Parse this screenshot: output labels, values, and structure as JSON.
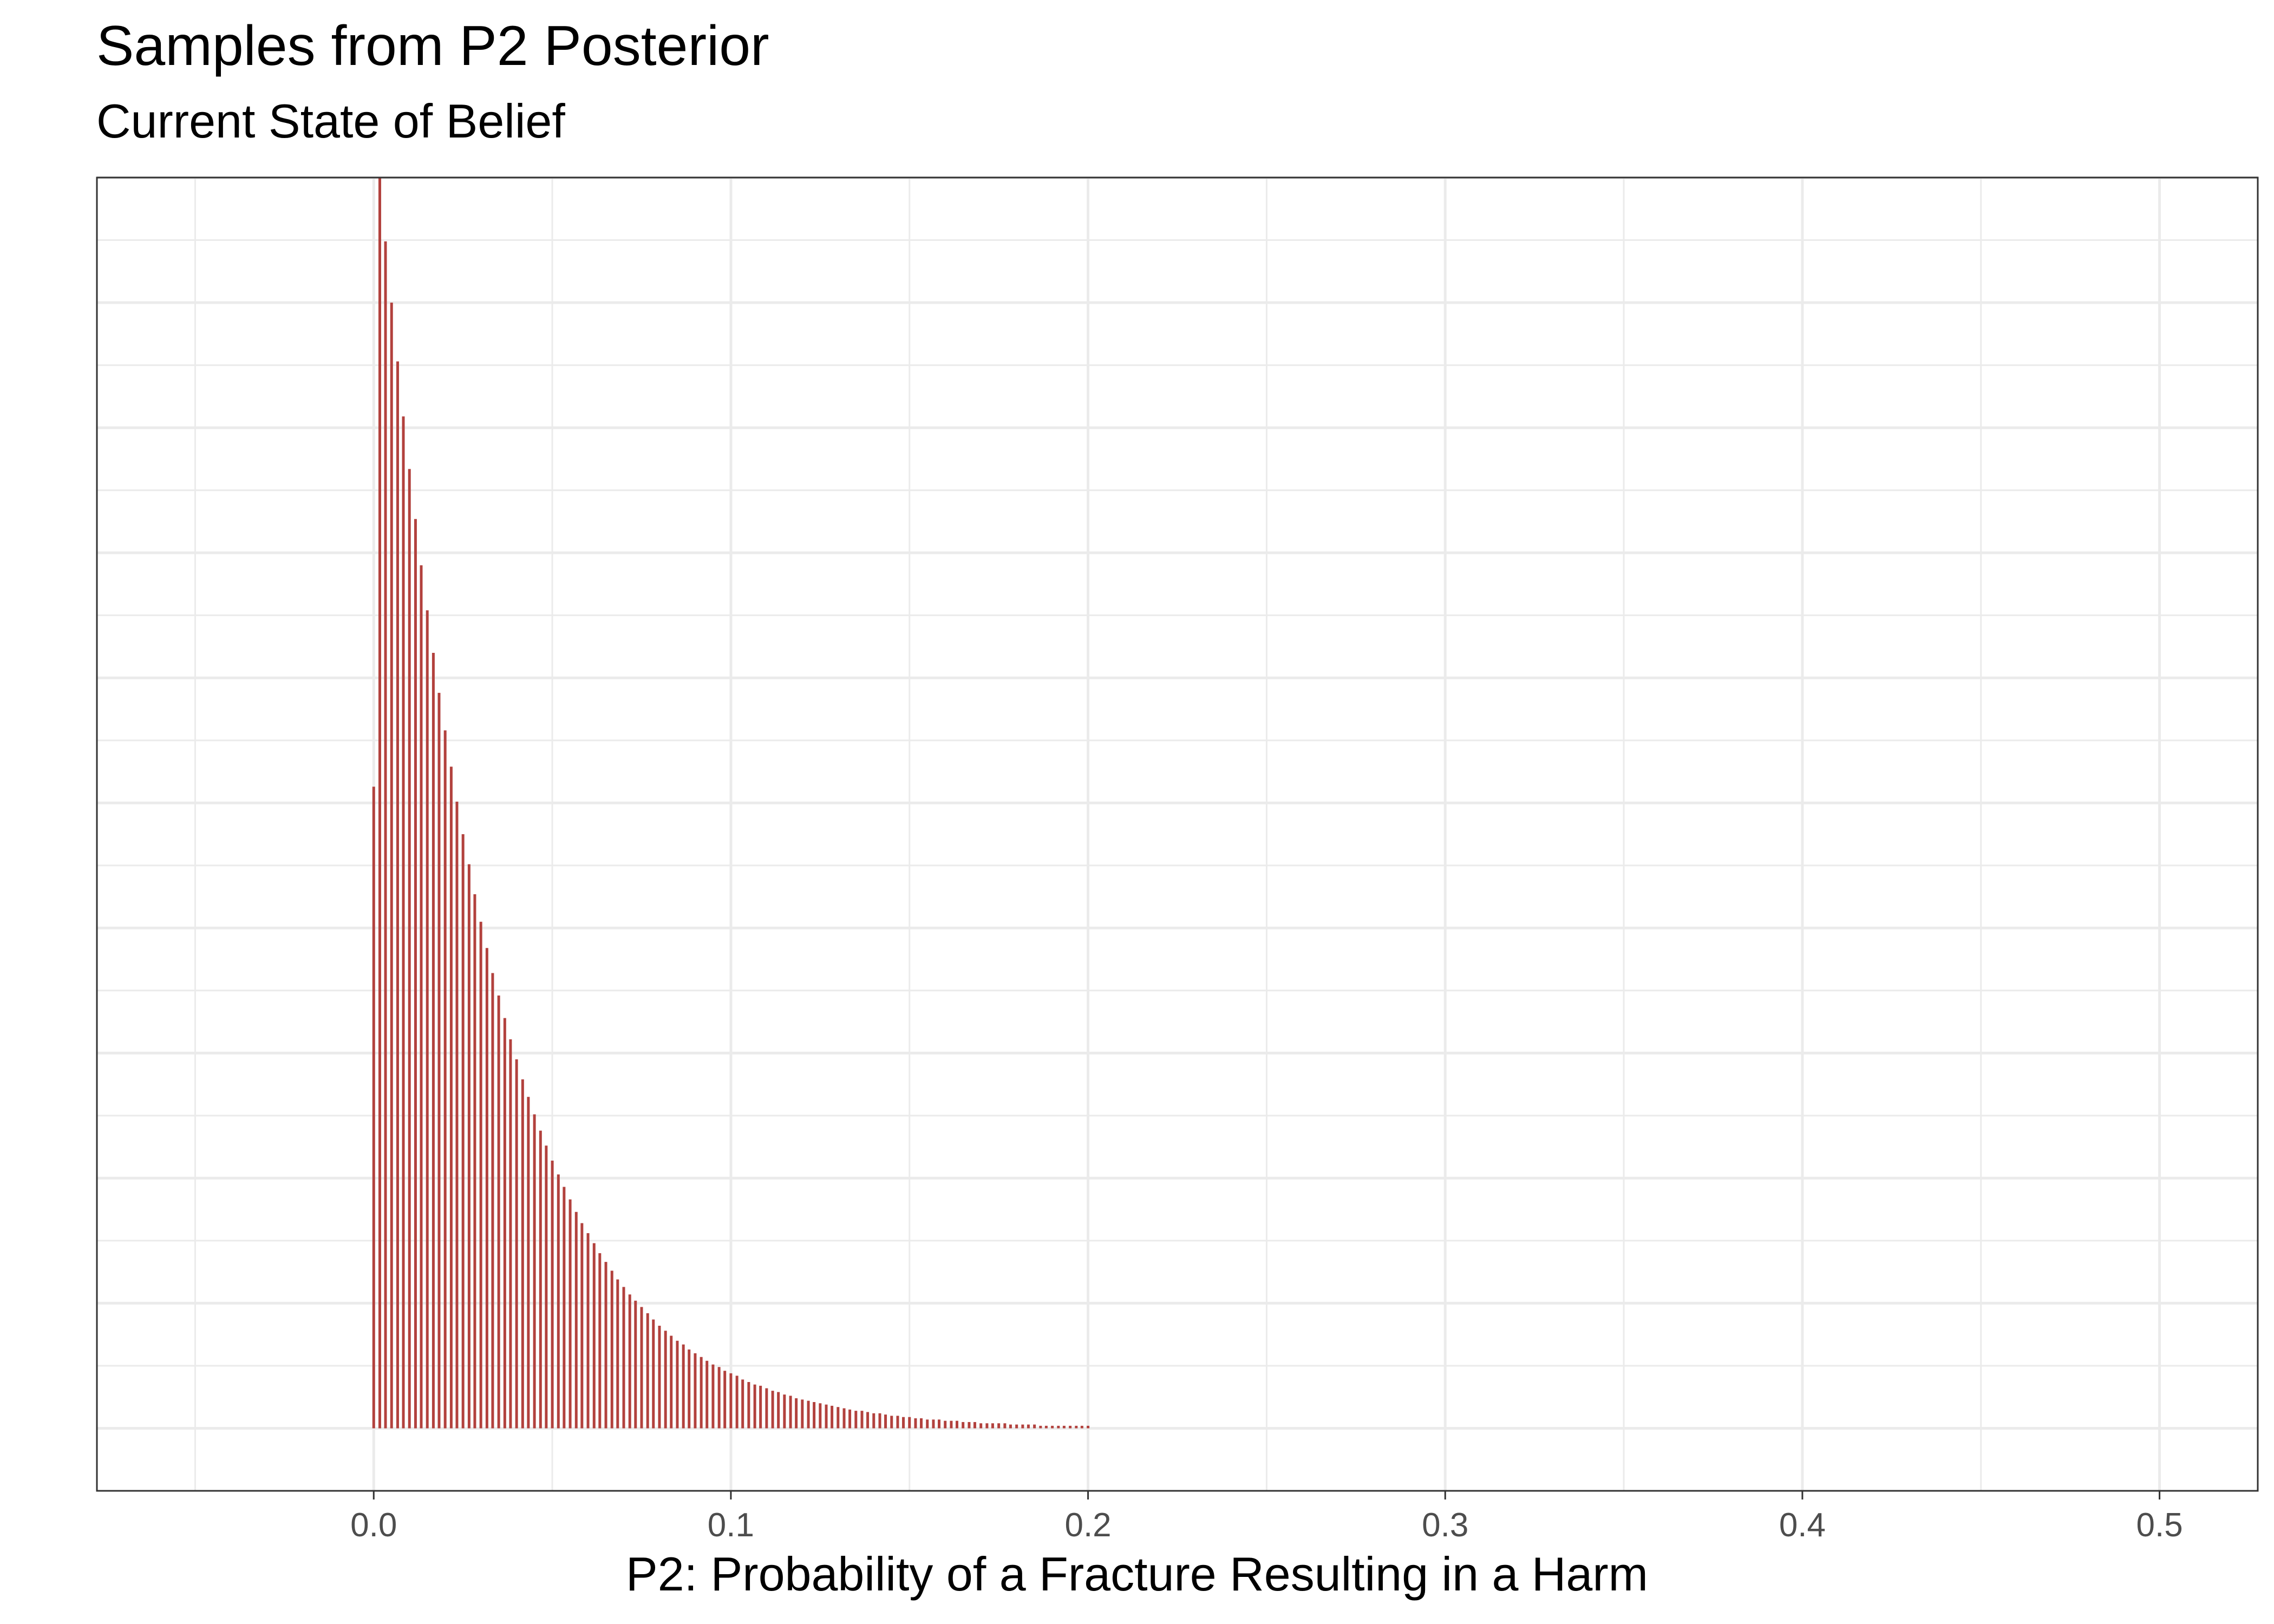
{
  "chart_data": {
    "type": "bar",
    "title": "Samples from P2 Posterior",
    "subtitle": "Current State of Belief",
    "xlabel": "P2: Probability of a Fracture Resulting in a Harm",
    "ylabel": "",
    "xlim": [
      -0.0775,
      0.5275
    ],
    "ylim": [
      -0.05,
      1.0
    ],
    "x_ticks": [
      0.0,
      0.1,
      0.2,
      0.3,
      0.4,
      0.5
    ],
    "x_tick_labels": [
      "0.0",
      "0.1",
      "0.2",
      "0.3",
      "0.4",
      "0.5"
    ],
    "y_ticks_labeled": false,
    "grid": true,
    "bar_color": "#b2413d",
    "bin_width": 0.00167,
    "x": [
      0.0,
      0.0017,
      0.0033,
      0.005,
      0.0067,
      0.0083,
      0.01,
      0.0117,
      0.0133,
      0.015,
      0.0167,
      0.0183,
      0.02,
      0.0217,
      0.0233,
      0.025,
      0.0267,
      0.0283,
      0.03,
      0.0317,
      0.0333,
      0.035,
      0.0367,
      0.0383,
      0.04,
      0.0417,
      0.0433,
      0.045,
      0.0467,
      0.0483,
      0.05,
      0.0517,
      0.0533,
      0.055,
      0.0567,
      0.0583,
      0.06,
      0.0617,
      0.0633,
      0.065,
      0.0667,
      0.0683,
      0.07,
      0.0717,
      0.0733,
      0.075,
      0.0767,
      0.0783,
      0.08,
      0.0817,
      0.0833,
      0.085,
      0.0867,
      0.0883,
      0.09,
      0.0917,
      0.0933,
      0.095,
      0.0967,
      0.0983,
      0.1,
      0.1017,
      0.1033,
      0.105,
      0.1067,
      0.1083,
      0.11,
      0.1117,
      0.1133,
      0.115,
      0.1167,
      0.1183,
      0.12,
      0.1217,
      0.1233,
      0.125,
      0.1267,
      0.1283,
      0.13,
      0.1317,
      0.1333,
      0.135,
      0.1367,
      0.1383,
      0.14,
      0.1417,
      0.1433,
      0.145,
      0.1467,
      0.1483,
      0.15,
      0.1517,
      0.1533,
      0.155,
      0.1567,
      0.1583,
      0.16,
      0.1617,
      0.1633,
      0.165,
      0.1667,
      0.1683,
      0.17,
      0.1717,
      0.1733,
      0.175,
      0.1767,
      0.1783,
      0.18,
      0.1817,
      0.1833,
      0.185,
      0.1867,
      0.1883,
      0.19,
      0.1917,
      0.1933,
      0.195,
      0.1967,
      0.1983,
      0.2
    ],
    "values": [
      0.513,
      1.0,
      0.949,
      0.9,
      0.853,
      0.809,
      0.767,
      0.727,
      0.69,
      0.654,
      0.62,
      0.588,
      0.558,
      0.529,
      0.501,
      0.475,
      0.451,
      0.427,
      0.405,
      0.384,
      0.364,
      0.346,
      0.328,
      0.311,
      0.295,
      0.279,
      0.265,
      0.251,
      0.238,
      0.226,
      0.214,
      0.203,
      0.193,
      0.183,
      0.173,
      0.164,
      0.156,
      0.148,
      0.14,
      0.133,
      0.126,
      0.119,
      0.113,
      0.107,
      0.102,
      0.097,
      0.092,
      0.087,
      0.082,
      0.078,
      0.074,
      0.07,
      0.067,
      0.063,
      0.06,
      0.057,
      0.054,
      0.051,
      0.049,
      0.046,
      0.044,
      0.042,
      0.039,
      0.037,
      0.035,
      0.034,
      0.032,
      0.03,
      0.029,
      0.027,
      0.026,
      0.024,
      0.023,
      0.022,
      0.021,
      0.02,
      0.019,
      0.018,
      0.017,
      0.016,
      0.015,
      0.014,
      0.014,
      0.013,
      0.012,
      0.012,
      0.011,
      0.01,
      0.01,
      0.009,
      0.009,
      0.008,
      0.008,
      0.007,
      0.007,
      0.007,
      0.006,
      0.006,
      0.006,
      0.005,
      0.005,
      0.005,
      0.004,
      0.004,
      0.004,
      0.004,
      0.004,
      0.003,
      0.003,
      0.003,
      0.003,
      0.003,
      0.002,
      0.002,
      0.002,
      0.002,
      0.002,
      0.002,
      0.002,
      0.002,
      0.002
    ]
  }
}
